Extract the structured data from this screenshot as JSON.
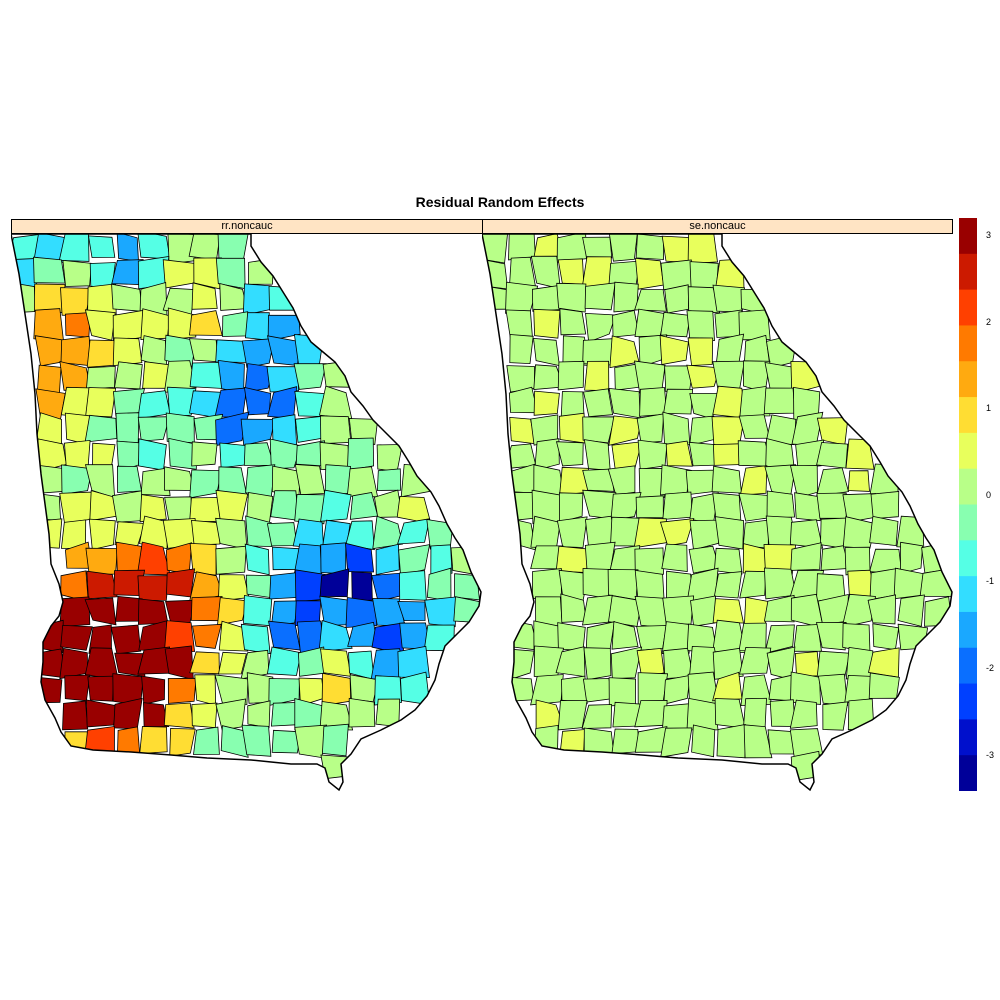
{
  "title": "Residual Random Effects",
  "panels": [
    {
      "strip_label": "rr.noncauc"
    },
    {
      "strip_label": "se.noncauc"
    }
  ],
  "legend": {
    "ticks": [
      "3",
      "2",
      "1",
      "0",
      "-1",
      "-2",
      "-3"
    ],
    "colors": [
      "#990000",
      "#cc1a00",
      "#ff4000",
      "#ff7a00",
      "#ffaa10",
      "#ffdd33",
      "#e8ff5c",
      "#b8ff88",
      "#88ffb0",
      "#55ffe5",
      "#33ddff",
      "#1aa8ff",
      "#0a6fff",
      "#0040ff",
      "#0010cc",
      "#000099"
    ]
  }
}
